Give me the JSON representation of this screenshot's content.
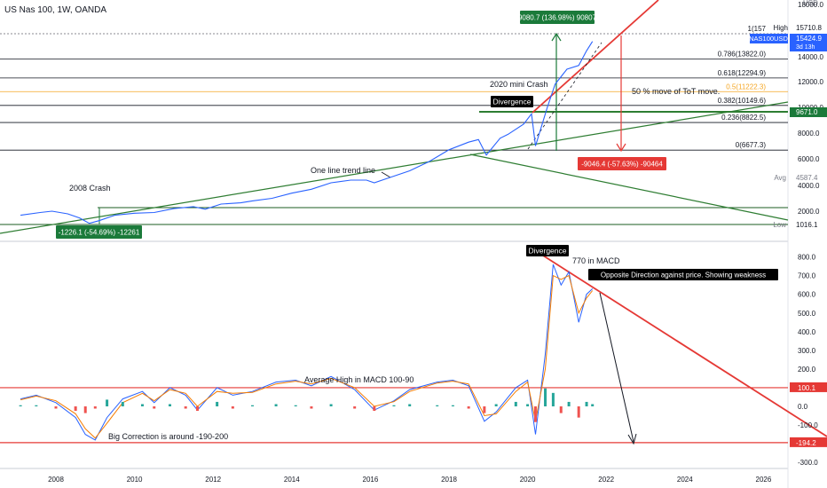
{
  "header": {
    "title": "US Nas 100, 1W, OANDA",
    "currency": "USD"
  },
  "chart_data": [
    {
      "type": "line",
      "title": "US Nas 100, 1W, OANDA",
      "series": [
        {
          "x": [
            2007.1,
            2007.6,
            2007.9,
            2008.3,
            2008.6,
            2008.85,
            2009.1,
            2009.5,
            2010.0,
            2010.5,
            2011.0,
            2011.5,
            2011.8,
            2012.2,
            2012.7,
            2013.0,
            2013.5,
            2014.0,
            2014.5,
            2015.0,
            2015.5,
            2015.9,
            2016.1,
            2016.5,
            2017.0,
            2017.5,
            2018.0,
            2018.5,
            2018.75,
            2018.95,
            2019.3,
            2019.5,
            2019.9,
            2020.1,
            2020.2,
            2020.5,
            2020.7,
            2021.0,
            2021.3,
            2021.5,
            2021.65
          ],
          "y": [
            1700,
            1900,
            2000,
            1800,
            1500,
            1100,
            1300,
            1700,
            1850,
            1900,
            2200,
            2350,
            2150,
            2550,
            2650,
            2800,
            3000,
            3400,
            3700,
            4200,
            4400,
            4400,
            4200,
            4600,
            5100,
            5800,
            6700,
            7300,
            7500,
            6300,
            7600,
            7900,
            8700,
            9500,
            7000,
            10000,
            11800,
            13000,
            13300,
            14500,
            15300
          ]
        }
      ],
      "levels": [
        {
          "label": "1(157",
          "value": 15710.8
        },
        {
          "label": "0.786(13822.0)",
          "value": 13822.0
        },
        {
          "label": "0.618(12294.9)",
          "value": 12294.9
        },
        {
          "label": "0.5(11222.3)",
          "value": 11222.3
        },
        {
          "label": "0.382(10149.6)",
          "value": 10149.6
        },
        {
          "label": "0.236(8822.5)",
          "value": 8822.5
        },
        {
          "label": "0(6677.3)",
          "value": 6677.3
        }
      ],
      "yticks": [
        "18000.0",
        "14000.0",
        "12000.0",
        "10000.0",
        "8000.0",
        "6000.0",
        "4000.0",
        "2000.0"
      ],
      "price_tags": [
        {
          "label": "High",
          "value": "15710.8"
        },
        {
          "label": "NAS100USD",
          "value": "15424.9",
          "sub": "3d 13h"
        },
        {
          "label": "",
          "value": "9671.0"
        },
        {
          "label": "Avg",
          "value": "4587.4"
        },
        {
          "label": "Low",
          "value": "1016.1"
        }
      ],
      "measures": [
        {
          "text": "9080.7 (136.98%) 90807",
          "color": "#1b7a3a"
        },
        {
          "text": "-9046.4 (-57.63%) -90464",
          "color": "#e53935"
        },
        {
          "text": "-1226.1 (-54.69%) -12261",
          "color": "#1b7a3a"
        }
      ],
      "annotations": {
        "crash2008": "2008 Crash",
        "trendline": "One line trend line",
        "mini_crash": "2020 mini Crash",
        "divergence": "Divergence",
        "tot_move": "50 % move of ToT move."
      }
    },
    {
      "type": "line",
      "series": [
        {
          "color": "#2962ff",
          "x": [
            2007.1,
            2007.5,
            2008.0,
            2008.5,
            2008.75,
            2009.0,
            2009.3,
            2009.7,
            2010.2,
            2010.5,
            2010.9,
            2011.3,
            2011.6,
            2012.1,
            2012.5,
            2013.0,
            2013.6,
            2014.1,
            2014.5,
            2015.0,
            2015.6,
            2016.1,
            2016.6,
            2017.0,
            2017.7,
            2018.1,
            2018.5,
            2018.9,
            2019.2,
            2019.7,
            2020.0,
            2020.2,
            2020.45,
            2020.65,
            2020.85,
            2021.05,
            2021.3,
            2021.5,
            2021.65
          ],
          "y": [
            40,
            60,
            20,
            -60,
            -150,
            -180,
            -60,
            40,
            80,
            20,
            100,
            60,
            -20,
            100,
            60,
            80,
            130,
            140,
            110,
            160,
            90,
            -20,
            30,
            90,
            130,
            140,
            110,
            -80,
            -30,
            100,
            140,
            -150,
            280,
            760,
            650,
            720,
            450,
            600,
            630
          ]
        },
        {
          "color": "#f57c00",
          "x": [
            2007.1,
            2007.5,
            2008.0,
            2008.5,
            2008.75,
            2009.0,
            2009.3,
            2009.7,
            2010.2,
            2010.5,
            2010.9,
            2011.3,
            2011.6,
            2012.1,
            2012.5,
            2013.0,
            2013.6,
            2014.1,
            2014.5,
            2015.0,
            2015.6,
            2016.1,
            2016.6,
            2017.0,
            2017.7,
            2018.1,
            2018.5,
            2018.9,
            2019.2,
            2019.7,
            2020.0,
            2020.2,
            2020.45,
            2020.65,
            2020.85,
            2021.05,
            2021.3,
            2021.5,
            2021.65
          ],
          "y": [
            35,
            55,
            30,
            -40,
            -120,
            -170,
            -90,
            20,
            70,
            30,
            90,
            70,
            0,
            80,
            70,
            75,
            120,
            135,
            120,
            150,
            100,
            0,
            25,
            80,
            125,
            135,
            120,
            -50,
            -40,
            80,
            130,
            -80,
            200,
            700,
            680,
            700,
            500,
            580,
            620
          ]
        }
      ],
      "yticks": [
        "800.0",
        "700.0",
        "600.0",
        "500.0",
        "400.0",
        "300.0",
        "200.0",
        "100.0",
        "0.0",
        "-100.0",
        "-200.0",
        "-300.0"
      ],
      "price_tags": [
        {
          "value": "100.1"
        },
        {
          "value": "-194.2"
        }
      ],
      "annotations": {
        "divergence": "Divergence",
        "macd770": "770 in MACD",
        "opposite": "Opposite Direction against price. Showing weakness",
        "avg_high": "Average High in MACD 100-90",
        "big_corr": "Big Correction is around -190-200"
      }
    }
  ],
  "xaxis": {
    "ticks": [
      "2008",
      "2010",
      "2012",
      "2014",
      "2016",
      "2018",
      "2020",
      "2022",
      "2024",
      "2026"
    ]
  }
}
